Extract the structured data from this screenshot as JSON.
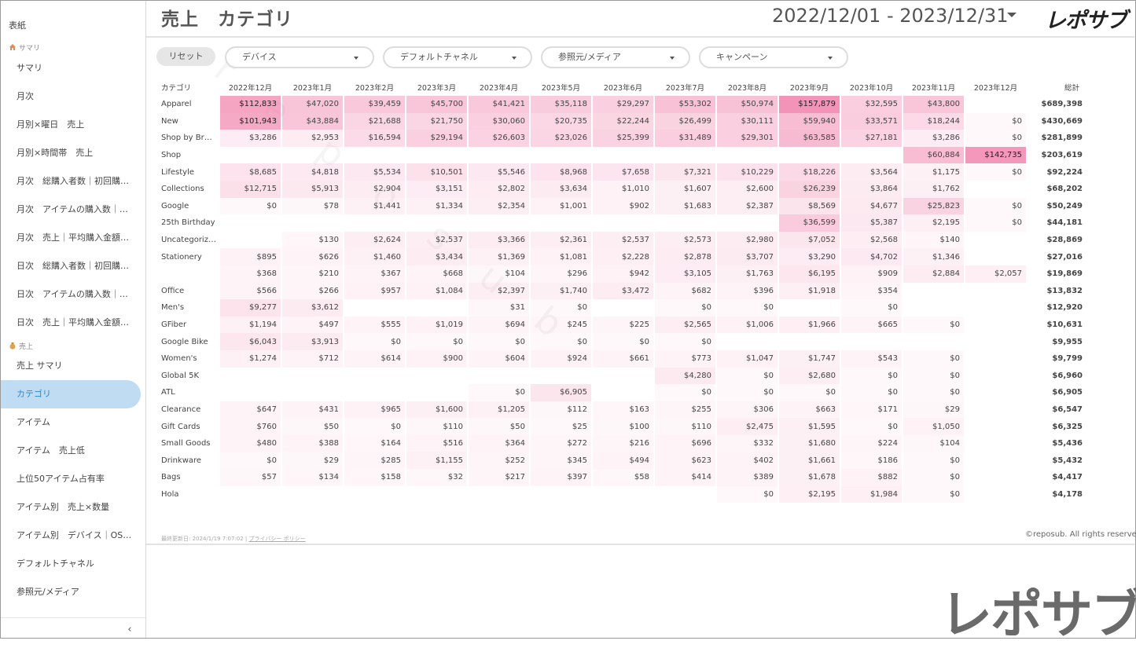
{
  "sidebar": {
    "top_label": "表紙",
    "section_summary": "サマリ",
    "items_a": [
      "サマリ",
      "月次",
      "月別×曜日　売上",
      "月別×時間帯　売上",
      "月次　総購入者数｜初回購…",
      "月次　アイテムの購入数｜…",
      "月次　売上｜平均購入金額…",
      "日次　総購入者数｜初回購…",
      "日次　アイテムの購入数｜…",
      "日次　売上｜平均購入金額…"
    ],
    "section_sales": "売上",
    "items_b": [
      "売上 サマリ",
      "カテゴリ",
      "アイテム",
      "アイテム　売上低",
      "上位50アイテム占有率",
      "アイテム別　売上×数量",
      "アイテム別　デバイス｜OS…",
      "デフォルトチャネル",
      "参照元/メディア"
    ],
    "collapse_glyph": "‹"
  },
  "header": {
    "title": "売上　カテゴリ",
    "date_range": "2022/12/01 - 2023/12/31",
    "brand": "レポサブ"
  },
  "filters": {
    "reset": "リセット",
    "device": "デバイス",
    "channel": "デフォルトチャネル",
    "source": "参照元/メディア",
    "campaign": "キャンペーン"
  },
  "table": {
    "headers": [
      "カテゴリ",
      "2022年12月",
      "2023年1月",
      "2023年2月",
      "2023年3月",
      "2023年4月",
      "2023年5月",
      "2023年6月",
      "2023年7月",
      "2023年8月",
      "2023年9月",
      "2023年10月",
      "2023年11月",
      "2023年12月",
      "総計"
    ],
    "rows": [
      {
        "cat": "Apparel",
        "vals": [
          "$112,833",
          "$47,020",
          "$39,459",
          "$45,700",
          "$41,421",
          "$35,118",
          "$29,297",
          "$53,302",
          "$50,974",
          "$157,879",
          "$32,595",
          "$43,800",
          ""
        ],
        "total": "$689,398"
      },
      {
        "cat": "New",
        "vals": [
          "$101,943",
          "$43,884",
          "$21,688",
          "$21,750",
          "$30,060",
          "$20,735",
          "$22,244",
          "$26,499",
          "$30,111",
          "$59,940",
          "$33,571",
          "$18,244",
          "$0"
        ],
        "total": "$430,669"
      },
      {
        "cat": "Shop by Br…",
        "vals": [
          "$3,286",
          "$2,953",
          "$16,594",
          "$29,194",
          "$26,603",
          "$23,026",
          "$25,399",
          "$31,489",
          "$29,301",
          "$63,585",
          "$27,181",
          "$3,286",
          "$0"
        ],
        "total": "$281,899"
      },
      {
        "cat": "Shop",
        "vals": [
          "",
          "",
          "",
          "",
          "",
          "",
          "",
          "",
          "",
          "",
          "",
          "$60,884",
          "$142,735"
        ],
        "total": "$203,619"
      },
      {
        "cat": "Lifestyle",
        "vals": [
          "$8,685",
          "$4,818",
          "$5,534",
          "$10,501",
          "$5,546",
          "$8,968",
          "$7,658",
          "$7,321",
          "$10,229",
          "$18,226",
          "$3,564",
          "$1,175",
          "$0"
        ],
        "total": "$92,224"
      },
      {
        "cat": "Collections",
        "vals": [
          "$12,715",
          "$5,913",
          "$2,904",
          "$3,151",
          "$2,802",
          "$3,634",
          "$1,010",
          "$1,607",
          "$2,600",
          "$26,239",
          "$3,864",
          "$1,762",
          ""
        ],
        "total": "$68,202"
      },
      {
        "cat": "Google",
        "vals": [
          "$0",
          "$78",
          "$1,441",
          "$1,334",
          "$2,354",
          "$1,001",
          "$902",
          "$1,683",
          "$2,387",
          "$8,569",
          "$4,677",
          "$25,823",
          "$0"
        ],
        "total": "$50,249"
      },
      {
        "cat": "25th Birthday",
        "vals": [
          "",
          "",
          "",
          "",
          "",
          "",
          "",
          "",
          "",
          "$36,599",
          "$5,387",
          "$2,195",
          "$0"
        ],
        "total": "$44,181"
      },
      {
        "cat": "Uncategoriz…",
        "vals": [
          "",
          "$130",
          "$2,624",
          "$2,537",
          "$3,366",
          "$2,361",
          "$2,537",
          "$2,573",
          "$2,980",
          "$7,052",
          "$2,568",
          "$140",
          ""
        ],
        "total": "$28,869"
      },
      {
        "cat": "Stationery",
        "vals": [
          "$895",
          "$626",
          "$1,460",
          "$3,434",
          "$1,369",
          "$1,081",
          "$2,228",
          "$2,878",
          "$3,707",
          "$3,290",
          "$4,702",
          "$1,346",
          ""
        ],
        "total": "$27,016"
      },
      {
        "cat": "",
        "vals": [
          "$368",
          "$210",
          "$367",
          "$668",
          "$104",
          "$296",
          "$942",
          "$3,105",
          "$1,763",
          "$6,195",
          "$909",
          "$2,884",
          "$2,057"
        ],
        "total": "$19,869"
      },
      {
        "cat": "Office",
        "vals": [
          "$566",
          "$266",
          "$957",
          "$1,084",
          "$2,397",
          "$1,740",
          "$3,472",
          "$682",
          "$396",
          "$1,918",
          "$354",
          "",
          ""
        ],
        "total": "$13,832"
      },
      {
        "cat": "Men's",
        "vals": [
          "$9,277",
          "$3,612",
          "",
          "",
          "$31",
          "$0",
          "",
          "$0",
          "$0",
          "",
          "$0",
          "",
          ""
        ],
        "total": "$12,920"
      },
      {
        "cat": "GFiber",
        "vals": [
          "$1,194",
          "$497",
          "$555",
          "$1,019",
          "$694",
          "$245",
          "$225",
          "$2,565",
          "$1,006",
          "$1,966",
          "$665",
          "$0",
          ""
        ],
        "total": "$10,631"
      },
      {
        "cat": "Google Bike",
        "vals": [
          "$6,043",
          "$3,913",
          "$0",
          "$0",
          "$0",
          "$0",
          "$0",
          "$0",
          "",
          "",
          "",
          "",
          ""
        ],
        "total": "$9,955"
      },
      {
        "cat": "Women's",
        "vals": [
          "$1,274",
          "$712",
          "$614",
          "$900",
          "$604",
          "$924",
          "$661",
          "$773",
          "$1,047",
          "$1,747",
          "$543",
          "$0",
          ""
        ],
        "total": "$9,799"
      },
      {
        "cat": "Global 5K",
        "vals": [
          "",
          "",
          "",
          "",
          "",
          "",
          "",
          "$4,280",
          "$0",
          "$2,680",
          "$0",
          "$0",
          ""
        ],
        "total": "$6,960"
      },
      {
        "cat": "ATL",
        "vals": [
          "",
          "",
          "",
          "",
          "$0",
          "$6,905",
          "",
          "$0",
          "$0",
          "$0",
          "$0",
          "$0",
          ""
        ],
        "total": "$6,905"
      },
      {
        "cat": "Clearance",
        "vals": [
          "$647",
          "$431",
          "$965",
          "$1,600",
          "$1,205",
          "$112",
          "$163",
          "$255",
          "$306",
          "$663",
          "$171",
          "$29",
          ""
        ],
        "total": "$6,547"
      },
      {
        "cat": "Gift Cards",
        "vals": [
          "$760",
          "$50",
          "$0",
          "$110",
          "$50",
          "$25",
          "$100",
          "$110",
          "$2,475",
          "$1,595",
          "$0",
          "$1,050",
          ""
        ],
        "total": "$6,325"
      },
      {
        "cat": "Small Goods",
        "vals": [
          "$480",
          "$388",
          "$164",
          "$516",
          "$364",
          "$272",
          "$216",
          "$696",
          "$332",
          "$1,680",
          "$224",
          "$104",
          ""
        ],
        "total": "$5,436"
      },
      {
        "cat": "Drinkware",
        "vals": [
          "$0",
          "$29",
          "$285",
          "$1,155",
          "$252",
          "$345",
          "$494",
          "$623",
          "$402",
          "$1,661",
          "$186",
          "$0",
          ""
        ],
        "total": "$5,432"
      },
      {
        "cat": "Bags",
        "vals": [
          "$57",
          "$134",
          "$158",
          "$32",
          "$217",
          "$397",
          "$58",
          "$414",
          "$389",
          "$1,678",
          "$882",
          "$0",
          ""
        ],
        "total": "$4,417"
      },
      {
        "cat": "Hola",
        "vals": [
          "",
          "",
          "",
          "",
          "",
          "",
          "",
          "",
          "$0",
          "$2,195",
          "$1,984",
          "$0",
          ""
        ],
        "total": "$4,178"
      }
    ]
  },
  "footer": {
    "updated": "最終更新日: 2024/1/19 7:07:02 |",
    "privacy": "プライバシー ポリシー",
    "copyright": "©reposub. All rights reserved.",
    "watermark": "レポサブ"
  }
}
